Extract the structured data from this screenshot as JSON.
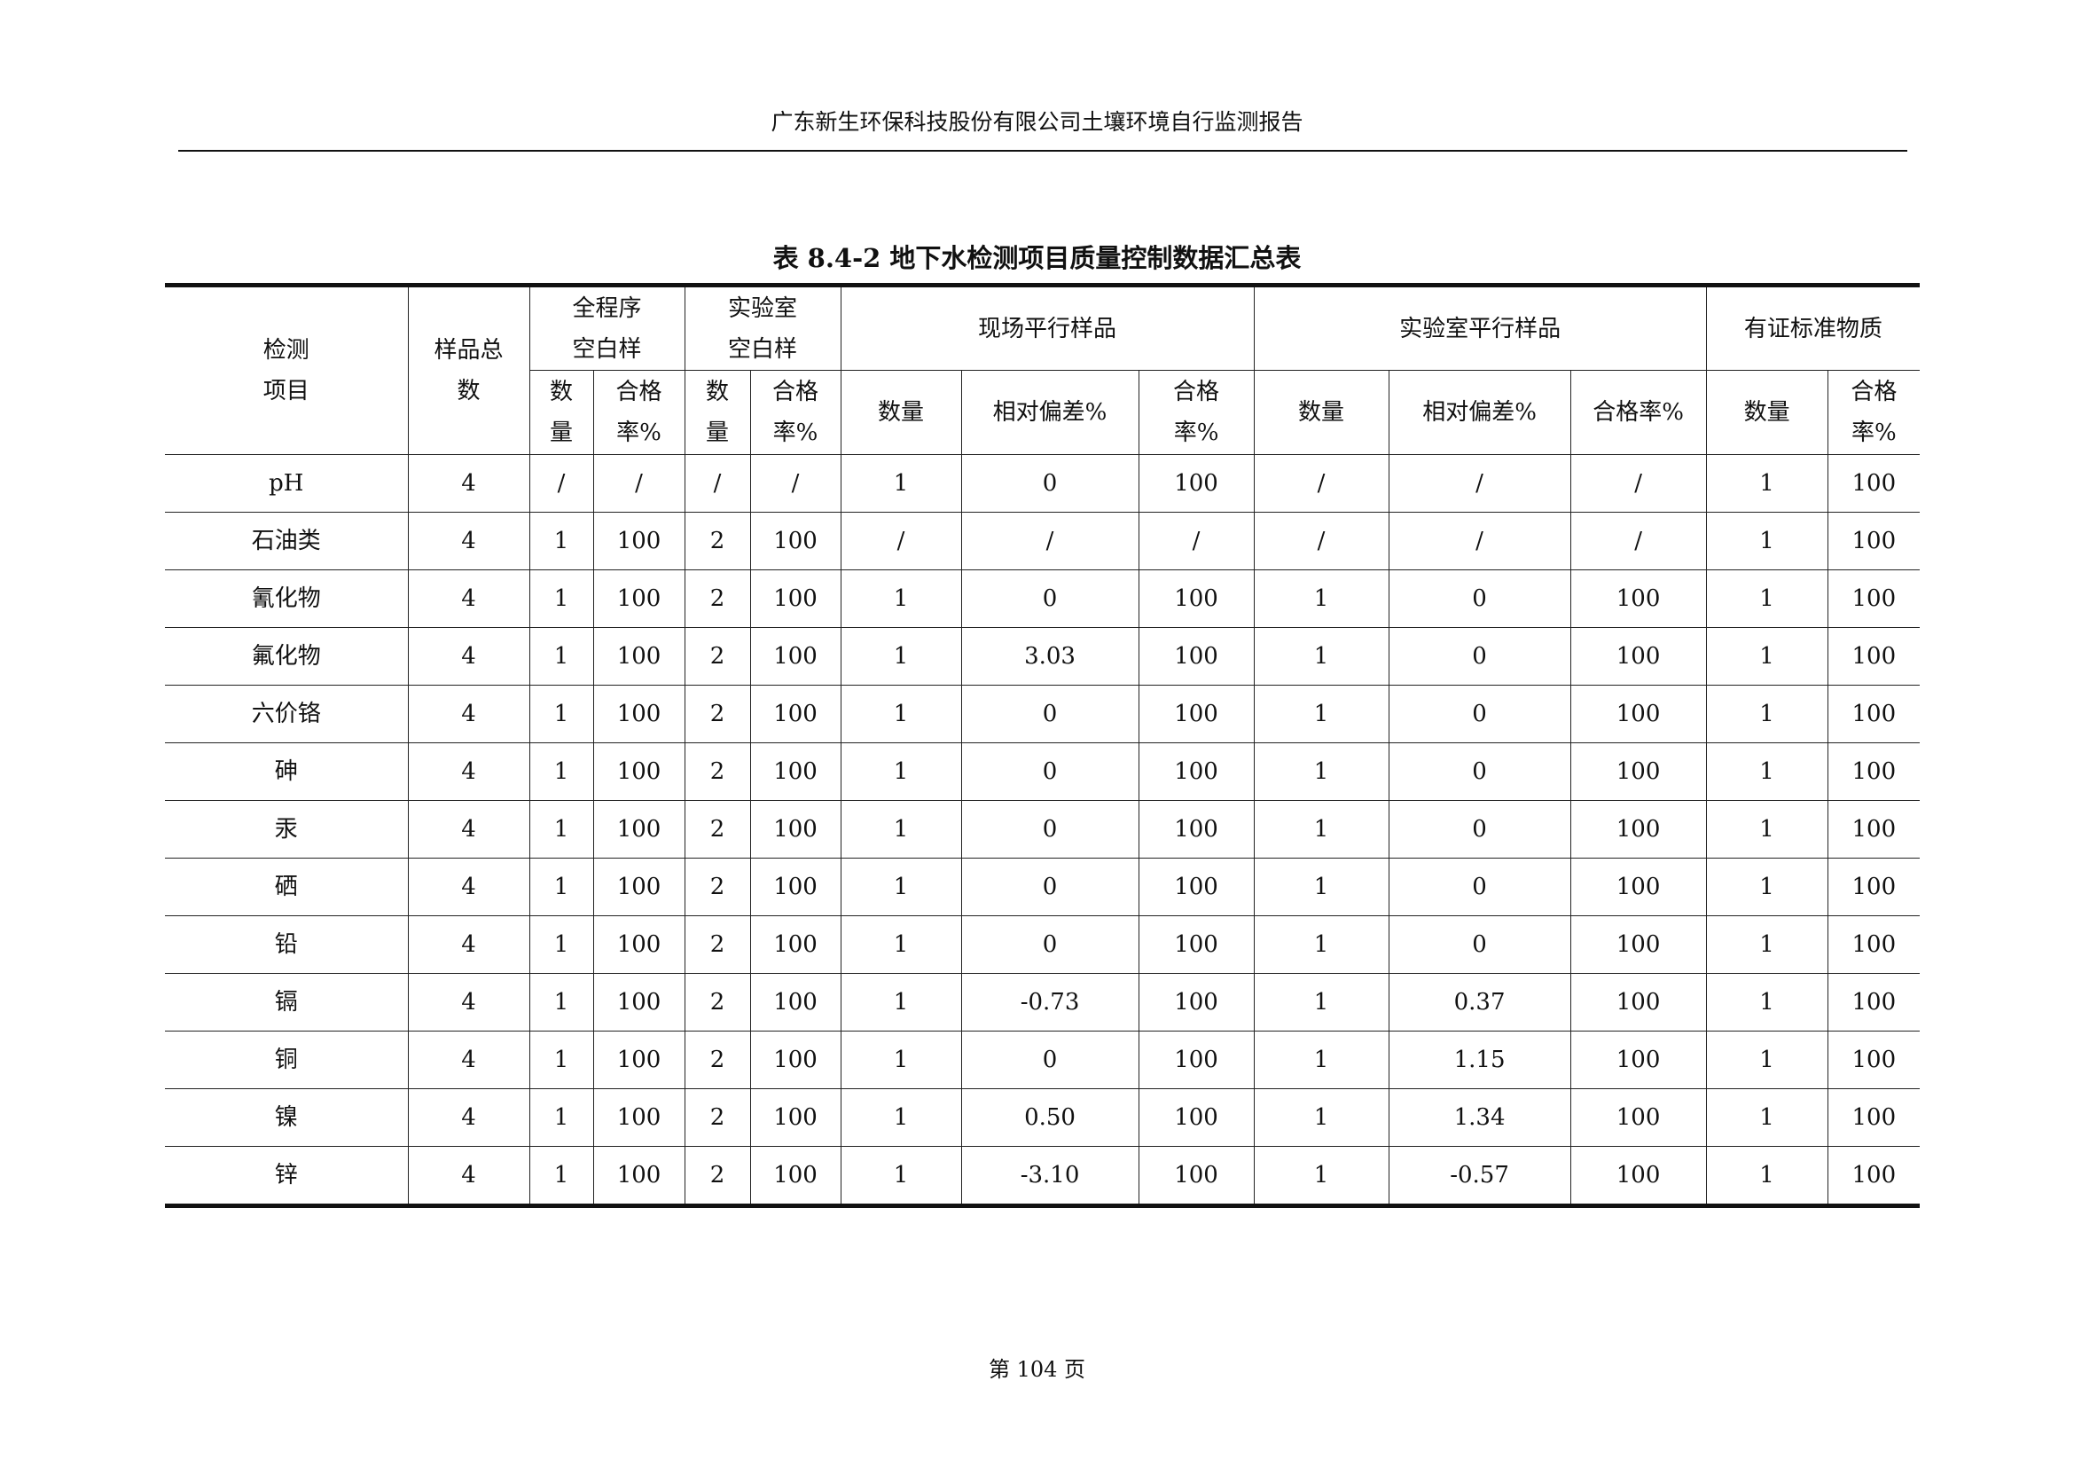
{
  "header": {
    "text": "广东新生环保科技股份有限公司土壤环境自行监测报告"
  },
  "table_title": "表 8.4-2  地下水检测项目质量控制数据汇总表",
  "columns": {
    "item": "检测\n项目",
    "sample_total": "样品总\n数",
    "full_blank": "全程序\n空白样",
    "lab_blank": "实验室\n空白样",
    "field_parallel": "现场平行样品",
    "lab_parallel": "实验室平行样品",
    "crm": "有证标准物质",
    "sub": [
      "数\n量",
      "合格\n率%",
      "数\n量",
      "合格\n率%",
      "数量",
      "相对偏差%",
      "合格\n率%",
      "数量",
      "相对偏差%",
      "合格率%",
      "数量",
      "合格\n率%"
    ]
  },
  "rows": [
    [
      "pH",
      "4",
      "/",
      "/",
      "/",
      "/",
      "1",
      "0",
      "100",
      "/",
      "/",
      "/",
      "1",
      "100"
    ],
    [
      "石油类",
      "4",
      "1",
      "100",
      "2",
      "100",
      "/",
      "/",
      "/",
      "/",
      "/",
      "/",
      "1",
      "100"
    ],
    [
      "氰化物",
      "4",
      "1",
      "100",
      "2",
      "100",
      "1",
      "0",
      "100",
      "1",
      "0",
      "100",
      "1",
      "100"
    ],
    [
      "氟化物",
      "4",
      "1",
      "100",
      "2",
      "100",
      "1",
      "3.03",
      "100",
      "1",
      "0",
      "100",
      "1",
      "100"
    ],
    [
      "六价铬",
      "4",
      "1",
      "100",
      "2",
      "100",
      "1",
      "0",
      "100",
      "1",
      "0",
      "100",
      "1",
      "100"
    ],
    [
      "砷",
      "4",
      "1",
      "100",
      "2",
      "100",
      "1",
      "0",
      "100",
      "1",
      "0",
      "100",
      "1",
      "100"
    ],
    [
      "汞",
      "4",
      "1",
      "100",
      "2",
      "100",
      "1",
      "0",
      "100",
      "1",
      "0",
      "100",
      "1",
      "100"
    ],
    [
      "硒",
      "4",
      "1",
      "100",
      "2",
      "100",
      "1",
      "0",
      "100",
      "1",
      "0",
      "100",
      "1",
      "100"
    ],
    [
      "铅",
      "4",
      "1",
      "100",
      "2",
      "100",
      "1",
      "0",
      "100",
      "1",
      "0",
      "100",
      "1",
      "100"
    ],
    [
      "镉",
      "4",
      "1",
      "100",
      "2",
      "100",
      "1",
      "-0.73",
      "100",
      "1",
      "0.37",
      "100",
      "1",
      "100"
    ],
    [
      "铜",
      "4",
      "1",
      "100",
      "2",
      "100",
      "1",
      "0",
      "100",
      "1",
      "1.15",
      "100",
      "1",
      "100"
    ],
    [
      "镍",
      "4",
      "1",
      "100",
      "2",
      "100",
      "1",
      "0.50",
      "100",
      "1",
      "1.34",
      "100",
      "1",
      "100"
    ],
    [
      "锌",
      "4",
      "1",
      "100",
      "2",
      "100",
      "1",
      "-3.10",
      "100",
      "1",
      "-0.57",
      "100",
      "1",
      "100"
    ]
  ],
  "footer": {
    "page": "第 104 页"
  }
}
